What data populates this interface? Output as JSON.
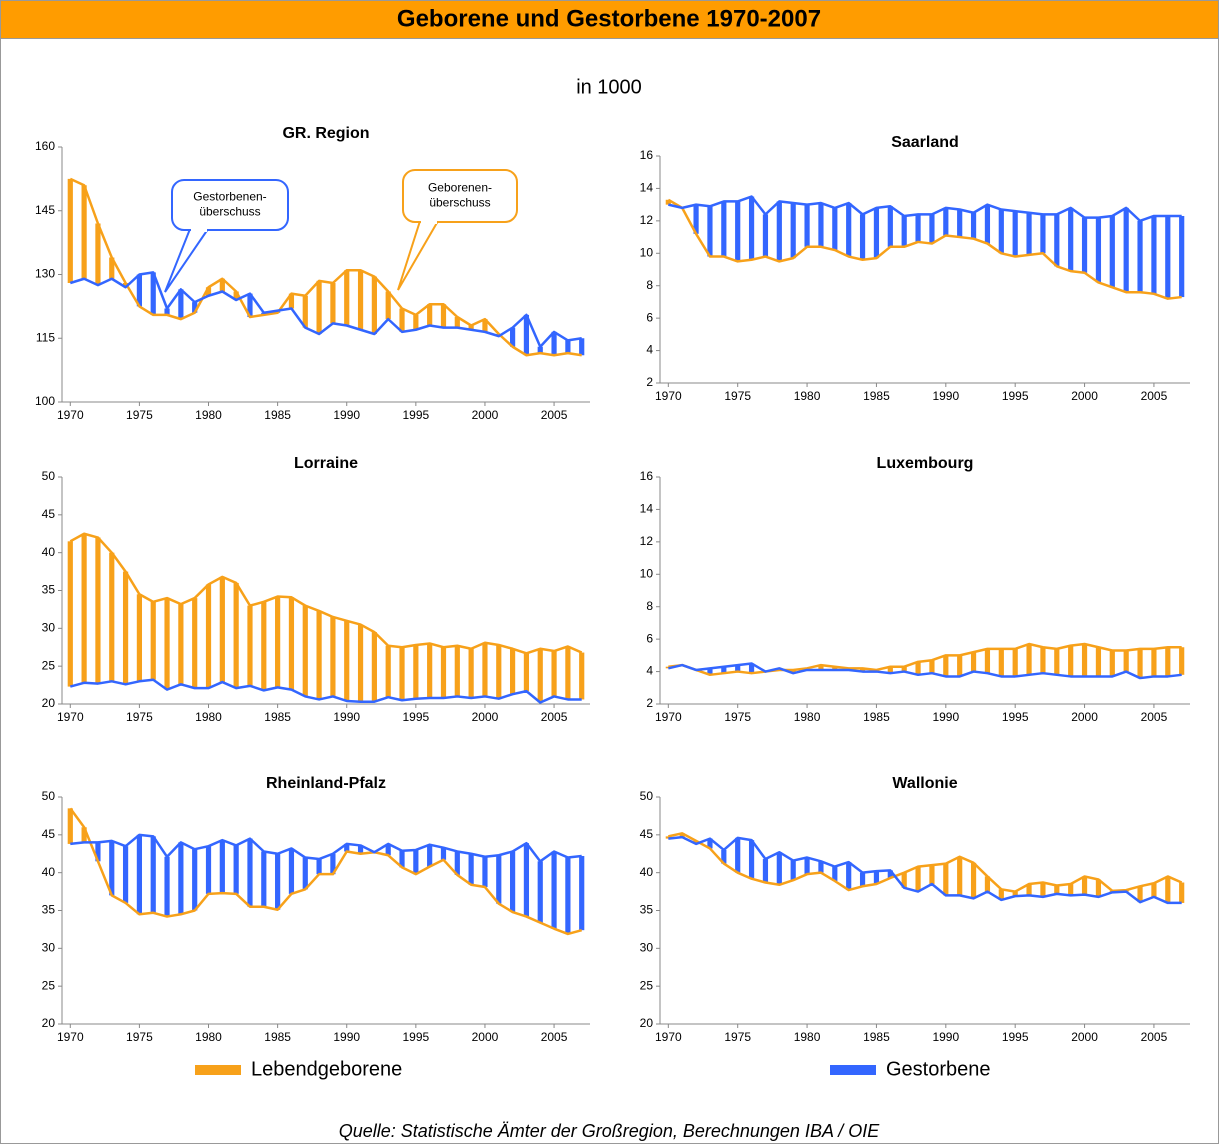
{
  "title": "Geborene und Gestorbene 1970-2007",
  "subtitle": "in 1000",
  "source": "Quelle: Statistische Ämter der Großregion, Berechnungen IBA / OIE",
  "legend": "bottom",
  "chart_data": [
    {
      "type": "line",
      "title": "GR. Region",
      "drop_bars": true,
      "x": [
        1970,
        1971,
        1972,
        1973,
        1974,
        1975,
        1976,
        1977,
        1978,
        1979,
        1980,
        1981,
        1982,
        1983,
        1984,
        1985,
        1986,
        1987,
        1988,
        1989,
        1990,
        1991,
        1992,
        1993,
        1994,
        1995,
        1996,
        1997,
        1998,
        1999,
        2000,
        2001,
        2002,
        2003,
        2004,
        2005,
        2006,
        2007
      ],
      "xlim": [
        1969.4,
        2007.6
      ],
      "xticks": [
        1970,
        1975,
        1980,
        1985,
        1990,
        1995,
        2000,
        2005
      ],
      "ylim": [
        100,
        160
      ],
      "yticks": [
        100,
        115,
        130,
        145,
        160
      ],
      "series": [
        {
          "name": "Lebendgeborene",
          "color": "#f7a11a",
          "values": [
            152.5,
            151,
            142,
            134,
            128,
            122.5,
            120.5,
            120.5,
            119.5,
            121,
            127,
            129,
            126,
            120,
            120.5,
            121,
            125.5,
            125,
            128.5,
            128,
            131,
            131,
            129.5,
            126,
            122,
            120.5,
            123,
            123,
            120,
            118,
            119.5,
            116,
            113,
            111,
            111.5,
            111,
            111.5,
            111
          ]
        },
        {
          "name": "Gestorbene",
          "color": "#3366ff",
          "values": [
            128,
            129,
            127.5,
            129,
            127,
            130,
            130.5,
            122,
            126.5,
            123.5,
            125,
            126,
            124,
            125.5,
            121,
            121.5,
            122,
            117.5,
            116,
            118.5,
            118,
            117,
            116,
            119.5,
            116.5,
            117,
            118,
            117.5,
            117.5,
            117,
            116.5,
            115.5,
            117.5,
            120.5,
            113,
            116.5,
            114.5,
            115
          ]
        }
      ],
      "annotations": [
        {
          "lines": [
            "Gestorbenen-",
            "überschuss"
          ],
          "color": "#3366ff"
        },
        {
          "lines": [
            "Geborenen-",
            "überschuss"
          ],
          "color": "#f7a11a"
        }
      ]
    },
    {
      "type": "line",
      "title": "Saarland",
      "drop_bars": true,
      "x": [
        1970,
        1971,
        1972,
        1973,
        1974,
        1975,
        1976,
        1977,
        1978,
        1979,
        1980,
        1981,
        1982,
        1983,
        1984,
        1985,
        1986,
        1987,
        1988,
        1989,
        1990,
        1991,
        1992,
        1993,
        1994,
        1995,
        1996,
        1997,
        1998,
        1999,
        2000,
        2001,
        2002,
        2003,
        2004,
        2005,
        2006,
        2007
      ],
      "xlim": [
        1969.4,
        2007.6
      ],
      "xticks": [
        1970,
        1975,
        1980,
        1985,
        1990,
        1995,
        2000,
        2005
      ],
      "ylim": [
        2,
        16
      ],
      "yticks": [
        2,
        4,
        6,
        8,
        10,
        12,
        14,
        16
      ],
      "series": [
        {
          "name": "Lebendgeborene",
          "color": "#f7a11a",
          "values": [
            13.3,
            12.8,
            11.2,
            9.8,
            9.8,
            9.5,
            9.6,
            9.8,
            9.5,
            9.7,
            10.4,
            10.4,
            10.2,
            9.8,
            9.6,
            9.7,
            10.4,
            10.4,
            10.7,
            10.6,
            11.1,
            11,
            10.9,
            10.6,
            10,
            9.8,
            9.9,
            10,
            9.2,
            8.9,
            8.8,
            8.2,
            7.9,
            7.6,
            7.6,
            7.5,
            7.2,
            7.3
          ]
        },
        {
          "name": "Gestorbene",
          "color": "#3366ff",
          "values": [
            13,
            12.8,
            13,
            12.9,
            13.2,
            13.2,
            13.5,
            12.4,
            13.2,
            13.1,
            13,
            13.1,
            12.8,
            13.1,
            12.4,
            12.8,
            12.9,
            12.3,
            12.4,
            12.4,
            12.8,
            12.7,
            12.5,
            13,
            12.7,
            12.6,
            12.5,
            12.4,
            12.4,
            12.8,
            12.2,
            12.2,
            12.3,
            12.8,
            12,
            12.3,
            12.3,
            12.3
          ]
        }
      ]
    },
    {
      "type": "line",
      "title": "Lorraine",
      "drop_bars": true,
      "x": [
        1970,
        1971,
        1972,
        1973,
        1974,
        1975,
        1976,
        1977,
        1978,
        1979,
        1980,
        1981,
        1982,
        1983,
        1984,
        1985,
        1986,
        1987,
        1988,
        1989,
        1990,
        1991,
        1992,
        1993,
        1994,
        1995,
        1996,
        1997,
        1998,
        1999,
        2000,
        2001,
        2002,
        2003,
        2004,
        2005,
        2006,
        2007
      ],
      "xlim": [
        1969.4,
        2007.6
      ],
      "xticks": [
        1970,
        1975,
        1980,
        1985,
        1990,
        1995,
        2000,
        2005
      ],
      "ylim": [
        20,
        50
      ],
      "yticks": [
        20,
        25,
        30,
        35,
        40,
        45,
        50
      ],
      "series": [
        {
          "name": "Lebendgeborene",
          "color": "#f7a11a",
          "values": [
            41.5,
            42.5,
            42,
            40,
            37.5,
            34.5,
            33.5,
            34,
            33.2,
            34,
            35.8,
            36.8,
            36,
            33,
            33.5,
            34.2,
            34.1,
            33,
            32.3,
            31.5,
            31,
            30.5,
            29.5,
            27.7,
            27.5,
            27.8,
            28,
            27.5,
            27.7,
            27.3,
            28.1,
            27.8,
            27.3,
            26.7,
            27.3,
            27,
            27.6,
            26.8
          ]
        },
        {
          "name": "Gestorbene",
          "color": "#3366ff",
          "values": [
            22.3,
            22.8,
            22.7,
            23,
            22.6,
            23,
            23.2,
            21.9,
            22.6,
            22.1,
            22.1,
            22.9,
            22.1,
            22.4,
            21.8,
            22.2,
            21.9,
            21,
            20.6,
            21,
            20.4,
            20.3,
            20.3,
            20.9,
            20.5,
            20.7,
            20.8,
            20.8,
            21,
            20.8,
            21,
            20.7,
            21.3,
            21.7,
            20.2,
            21,
            20.6,
            20.6
          ]
        }
      ]
    },
    {
      "type": "line",
      "title": "Luxembourg",
      "drop_bars": true,
      "x": [
        1970,
        1971,
        1972,
        1973,
        1974,
        1975,
        1976,
        1977,
        1978,
        1979,
        1980,
        1981,
        1982,
        1983,
        1984,
        1985,
        1986,
        1987,
        1988,
        1989,
        1990,
        1991,
        1992,
        1993,
        1994,
        1995,
        1996,
        1997,
        1998,
        1999,
        2000,
        2001,
        2002,
        2003,
        2004,
        2005,
        2006,
        2007
      ],
      "xlim": [
        1969.4,
        2007.6
      ],
      "xticks": [
        1970,
        1975,
        1980,
        1985,
        1990,
        1995,
        2000,
        2005
      ],
      "ylim": [
        2,
        16
      ],
      "yticks": [
        2,
        4,
        6,
        8,
        10,
        12,
        14,
        16
      ],
      "series": [
        {
          "name": "Lebendgeborene",
          "color": "#f7a11a",
          "values": [
            4.3,
            4.4,
            4.1,
            3.8,
            3.9,
            4,
            3.9,
            4,
            4.1,
            4.1,
            4.2,
            4.4,
            4.3,
            4.2,
            4.2,
            4.1,
            4.3,
            4.3,
            4.6,
            4.7,
            5,
            5,
            5.2,
            5.4,
            5.4,
            5.4,
            5.7,
            5.5,
            5.4,
            5.6,
            5.7,
            5.5,
            5.3,
            5.3,
            5.4,
            5.4,
            5.5,
            5.5
          ]
        },
        {
          "name": "Gestorbene",
          "color": "#3366ff",
          "values": [
            4.2,
            4.4,
            4.1,
            4.2,
            4.3,
            4.4,
            4.5,
            4,
            4.2,
            3.9,
            4.1,
            4.1,
            4.1,
            4.1,
            4,
            4,
            3.9,
            4,
            3.8,
            3.9,
            3.7,
            3.7,
            4,
            3.9,
            3.7,
            3.7,
            3.8,
            3.9,
            3.8,
            3.7,
            3.7,
            3.7,
            3.7,
            4,
            3.6,
            3.7,
            3.7,
            3.8
          ]
        }
      ]
    },
    {
      "type": "line",
      "title": "Rheinland-Pfalz",
      "drop_bars": true,
      "x": [
        1970,
        1971,
        1972,
        1973,
        1974,
        1975,
        1976,
        1977,
        1978,
        1979,
        1980,
        1981,
        1982,
        1983,
        1984,
        1985,
        1986,
        1987,
        1988,
        1989,
        1990,
        1991,
        1992,
        1993,
        1994,
        1995,
        1996,
        1997,
        1998,
        1999,
        2000,
        2001,
        2002,
        2003,
        2004,
        2005,
        2006,
        2007
      ],
      "xlim": [
        1969.4,
        2007.6
      ],
      "xticks": [
        1970,
        1975,
        1980,
        1985,
        1990,
        1995,
        2000,
        2005
      ],
      "ylim": [
        20,
        50
      ],
      "yticks": [
        20,
        25,
        30,
        35,
        40,
        45,
        50
      ],
      "series": [
        {
          "name": "Lebendgeborene",
          "color": "#f7a11a",
          "values": [
            48.5,
            46,
            41.5,
            37,
            36,
            34.5,
            34.7,
            34.2,
            34.5,
            35,
            37.2,
            37.3,
            37.2,
            35.5,
            35.5,
            35.1,
            37.2,
            37.8,
            39.8,
            39.8,
            42.8,
            42.5,
            42.7,
            42.3,
            40.7,
            39.8,
            40.8,
            41.7,
            39.7,
            38.4,
            38.1,
            35.9,
            34.8,
            34.2,
            33.4,
            32.6,
            31.9,
            32.4
          ]
        },
        {
          "name": "Gestorbene",
          "color": "#3366ff",
          "values": [
            43.8,
            44,
            44,
            44.2,
            43.5,
            45,
            44.8,
            42.1,
            44,
            43.1,
            43.5,
            44.3,
            43.6,
            44.5,
            42.8,
            42.5,
            43.2,
            42,
            41.8,
            42.5,
            43.8,
            43.6,
            42.7,
            43.8,
            42.9,
            43,
            43.7,
            43.3,
            42.8,
            42.5,
            42.1,
            42.3,
            42.8,
            43.9,
            41.5,
            42.8,
            42,
            42.2
          ]
        }
      ]
    },
    {
      "type": "line",
      "title": "Wallonie",
      "drop_bars": true,
      "x": [
        1970,
        1971,
        1972,
        1973,
        1974,
        1975,
        1976,
        1977,
        1978,
        1979,
        1980,
        1981,
        1982,
        1983,
        1984,
        1985,
        1986,
        1987,
        1988,
        1989,
        1990,
        1991,
        1992,
        1993,
        1994,
        1995,
        1996,
        1997,
        1998,
        1999,
        2000,
        2001,
        2002,
        2003,
        2004,
        2005,
        2006,
        2007
      ],
      "xlim": [
        1969.4,
        2007.6
      ],
      "xticks": [
        1970,
        1975,
        1980,
        1985,
        1990,
        1995,
        2000,
        2005
      ],
      "ylim": [
        20,
        50
      ],
      "yticks": [
        20,
        25,
        30,
        35,
        40,
        45,
        50
      ],
      "series": [
        {
          "name": "Lebendgeborene",
          "color": "#f7a11a",
          "values": [
            44.8,
            45.2,
            44.2,
            43.2,
            41.2,
            40,
            39.2,
            38.7,
            38.4,
            39,
            39.8,
            40,
            38.9,
            37.7,
            38.2,
            38.5,
            39.3,
            40,
            40.8,
            41,
            41.2,
            42.1,
            41.3,
            39.5,
            37.8,
            37.5,
            38.5,
            38.7,
            38.3,
            38.5,
            39.5,
            39.1,
            37.6,
            37.7,
            38.2,
            38.6,
            39.5,
            38.7
          ]
        },
        {
          "name": "Gestorbene",
          "color": "#3366ff",
          "values": [
            44.5,
            44.7,
            43.8,
            44.5,
            43,
            44.6,
            44.3,
            41.8,
            42.7,
            41.6,
            42,
            41.5,
            40.8,
            41.4,
            40,
            40.2,
            40.3,
            38,
            37.5,
            38.5,
            37,
            37,
            36.6,
            37.5,
            36.4,
            36.9,
            37,
            36.8,
            37.2,
            37,
            37.1,
            36.8,
            37.4,
            37.5,
            36.1,
            36.8,
            36,
            36
          ]
        }
      ]
    }
  ]
}
